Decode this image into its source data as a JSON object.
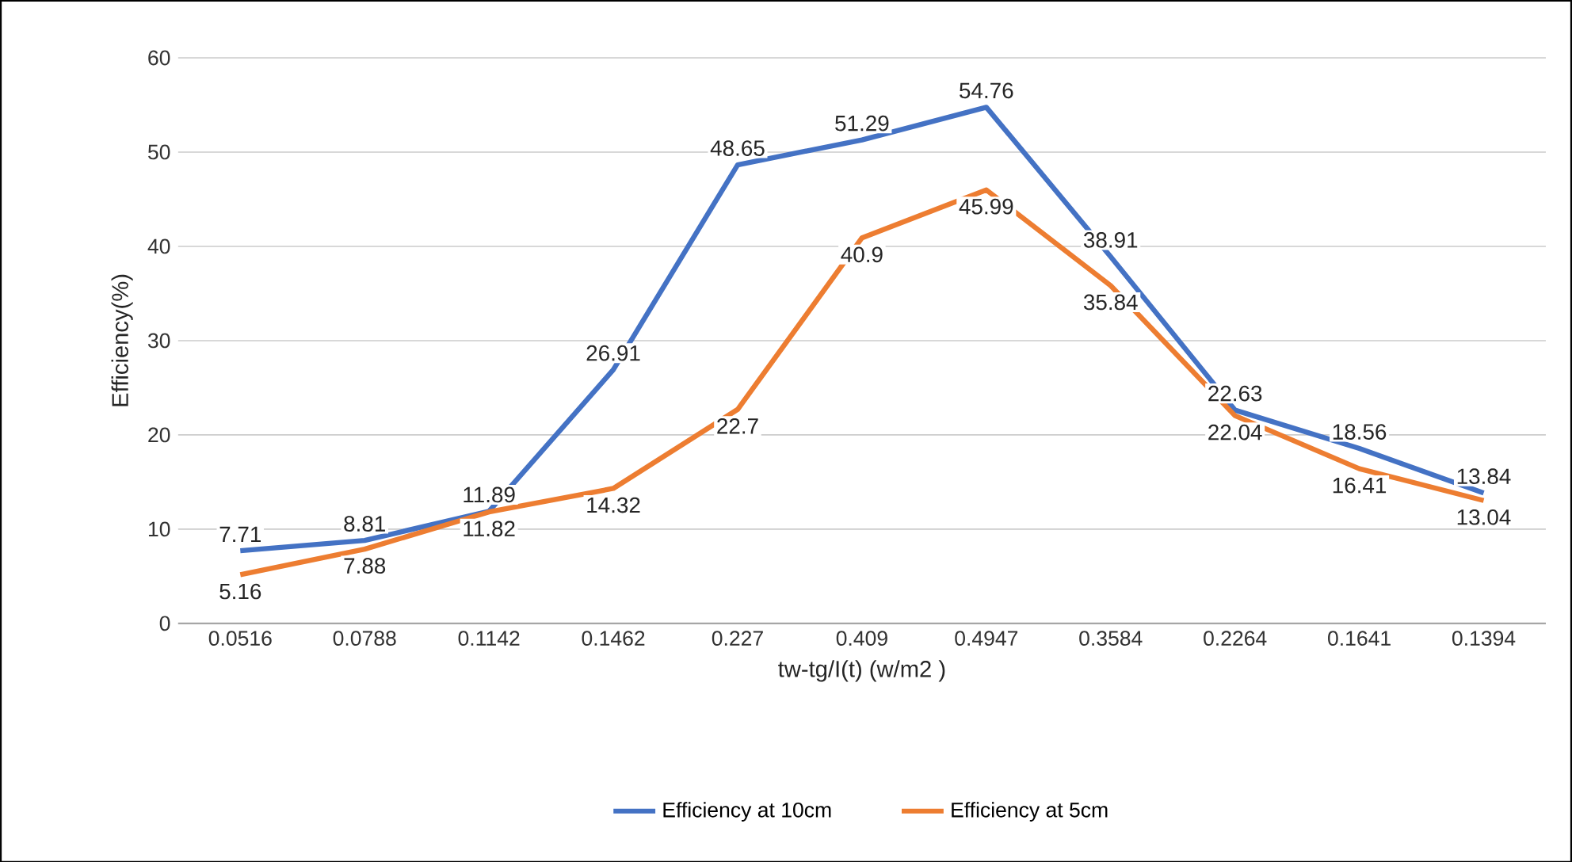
{
  "chart_data": {
    "type": "line",
    "xlabel": "tw-tg/I(t) (w/m2 )",
    "ylabel": "Efficiency(%)",
    "categories": [
      "0.0516",
      "0.0788",
      "0.1142",
      "0.1462",
      "0.227",
      "0.409",
      "0.4947",
      "0.3584",
      "0.2264",
      "0.1641",
      "0.1394"
    ],
    "series": [
      {
        "name": "Efficiency at 10cm",
        "color": "#4472c4",
        "values": [
          7.71,
          8.81,
          11.89,
          26.91,
          48.65,
          51.29,
          54.76,
          38.91,
          22.63,
          18.56,
          13.84
        ]
      },
      {
        "name": "Efficiency at 5cm",
        "color": "#ed7d31",
        "values": [
          5.16,
          7.88,
          11.82,
          14.32,
          22.7,
          40.9,
          45.99,
          35.84,
          22.04,
          16.41,
          13.04
        ]
      }
    ],
    "ylim": [
      0,
      60
    ],
    "yticks": [
      0,
      10,
      20,
      30,
      40,
      50,
      60
    ],
    "grid": "y",
    "legend": "bottom",
    "data_labels": true,
    "marker": "none",
    "line_style": "solid"
  }
}
